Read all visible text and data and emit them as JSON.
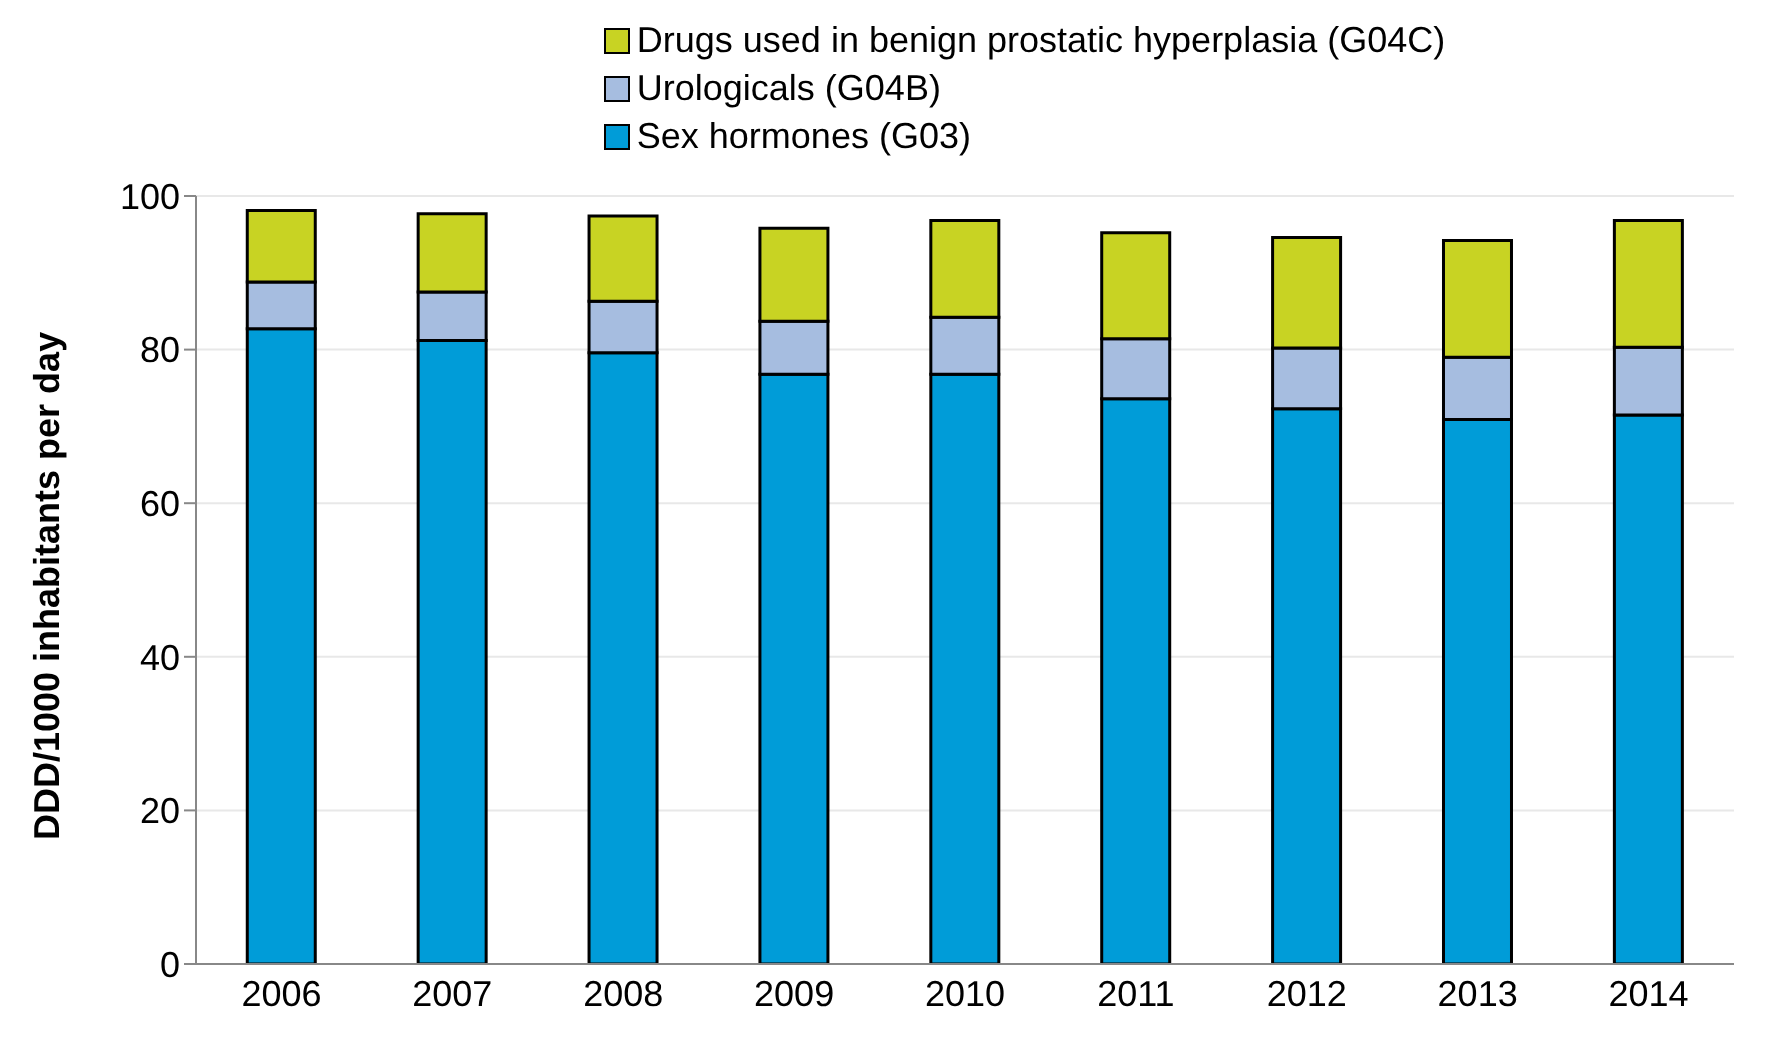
{
  "chart_data": {
    "type": "bar",
    "stacked": true,
    "ylabel": "DDD/1000 inhabitants per day",
    "categories": [
      "2006",
      "2007",
      "2008",
      "2009",
      "2010",
      "2011",
      "2012",
      "2013",
      "2014"
    ],
    "series": [
      {
        "name": "Sex hormones (G03)",
        "color": "#009cd8",
        "values": [
          82.7,
          81.2,
          79.6,
          76.8,
          76.8,
          73.6,
          72.3,
          70.9,
          71.5
        ]
      },
      {
        "name": "Urologicals (G04B)",
        "color": "#a6bde0",
        "values": [
          6.1,
          6.3,
          6.7,
          6.9,
          7.4,
          7.8,
          7.9,
          8.1,
          8.8
        ]
      },
      {
        "name": "Drugs used in benign prostatic hyperplasia (G04C)",
        "color": "#c8d323",
        "values": [
          9.3,
          10.2,
          11.1,
          12.1,
          12.6,
          13.8,
          14.4,
          15.2,
          16.5
        ]
      }
    ],
    "ylim": [
      0,
      100
    ],
    "yticks": [
      0,
      20,
      40,
      60,
      80,
      100
    ],
    "grid": "y",
    "legend": "top"
  }
}
